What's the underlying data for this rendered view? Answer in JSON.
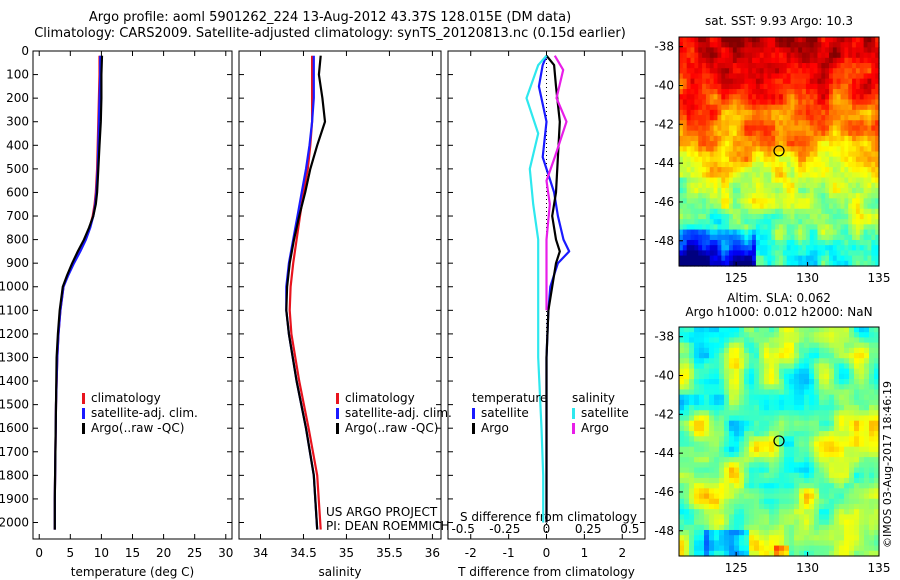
{
  "header": {
    "line1": "Argo profile: aoml 5901262_224 13-Aug-2012 43.37S 128.015E (DM data)",
    "line2": "Climatology: CARS2009. Satellite-adjusted climatology: synTS_20120813.nc (0.15d earlier)"
  },
  "colors": {
    "climatology": "#e8141e",
    "satellite": "#1a1aff",
    "argo": "#000000",
    "salinity_satellite": "#2ee8ee",
    "salinity_argo": "#e81ee8"
  },
  "chart_data": [
    {
      "id": "temperature",
      "type": "line",
      "xlabel": "temperature (deg C)",
      "ylabel": "",
      "xlim": [
        -1,
        31
      ],
      "xticks": [
        "0",
        "5",
        "10",
        "15",
        "20",
        "25",
        "30"
      ],
      "ylim": [
        2070,
        0
      ],
      "yticks": [
        "0",
        "100",
        "200",
        "300",
        "400",
        "500",
        "600",
        "700",
        "800",
        "900",
        "1000",
        "1100",
        "1200",
        "1300",
        "1400",
        "1500",
        "1600",
        "1700",
        "1800",
        "1900",
        "2000"
      ],
      "legend": [
        "climatology",
        "satellite-adj. clim.",
        "Argo(..raw -QC)"
      ],
      "series": [
        {
          "name": "climatology",
          "color": "#e8141e",
          "x": [
            9.7,
            9.7,
            9.6,
            9.5,
            9.4,
            9.3,
            9.1,
            8.9,
            8.6,
            8.1,
            7.4,
            6.5,
            5.5,
            4.6,
            3.9,
            3.4,
            3.1,
            2.9,
            2.7,
            2.6,
            2.5,
            2.5
          ],
          "y": [
            20,
            100,
            200,
            300,
            400,
            500,
            600,
            650,
            700,
            750,
            800,
            850,
            900,
            950,
            1000,
            1100,
            1200,
            1300,
            1500,
            1700,
            1900,
            2030
          ]
        },
        {
          "name": "satellite-adj. clim.",
          "color": "#1a1aff",
          "x": [
            9.8,
            9.8,
            9.7,
            9.6,
            9.5,
            9.4,
            9.2,
            9.0,
            8.7,
            8.2,
            7.5,
            6.6,
            5.6,
            4.7,
            3.9,
            3.4,
            3.1,
            2.9,
            2.7,
            2.6,
            2.5,
            2.5
          ],
          "y": [
            20,
            100,
            200,
            300,
            400,
            500,
            600,
            650,
            700,
            750,
            800,
            850,
            900,
            950,
            1000,
            1100,
            1200,
            1300,
            1500,
            1700,
            1900,
            2030
          ]
        },
        {
          "name": "Argo(..raw -QC)",
          "color": "#000000",
          "x": [
            10.1,
            10.0,
            10.0,
            9.9,
            9.7,
            9.5,
            9.3,
            9.1,
            8.7,
            8.0,
            7.2,
            6.2,
            5.3,
            4.5,
            3.8,
            3.3,
            3.0,
            2.8,
            2.7,
            2.6,
            2.5,
            2.5
          ],
          "y": [
            20,
            100,
            200,
            300,
            400,
            500,
            600,
            650,
            700,
            750,
            800,
            850,
            900,
            950,
            1000,
            1100,
            1200,
            1300,
            1500,
            1700,
            1900,
            2030
          ]
        }
      ]
    },
    {
      "id": "salinity",
      "type": "line",
      "xlabel": "salinity",
      "ylabel": "",
      "xlim": [
        33.75,
        36.1
      ],
      "xticks": [
        "34",
        "34.5",
        "35",
        "35.5",
        "36"
      ],
      "ylim": [
        2070,
        0
      ],
      "legend": [
        "climatology",
        "satellite-adj. clim.",
        "Argo(..raw -QC)"
      ],
      "series": [
        {
          "name": "climatology",
          "color": "#e8141e",
          "x": [
            34.6,
            34.6,
            34.6,
            34.6,
            34.58,
            34.55,
            34.5,
            34.46,
            34.42,
            34.38,
            34.35,
            34.34,
            34.36,
            34.45,
            34.56,
            34.66,
            34.7
          ],
          "y": [
            20,
            100,
            200,
            300,
            400,
            500,
            600,
            700,
            800,
            900,
            1000,
            1100,
            1200,
            1400,
            1600,
            1800,
            2030
          ]
        },
        {
          "name": "satellite-adj. clim.",
          "color": "#1a1aff",
          "x": [
            34.62,
            34.62,
            34.62,
            34.6,
            34.57,
            34.53,
            34.48,
            34.43,
            34.38,
            34.33,
            34.3,
            34.3,
            34.33,
            34.42,
            34.53,
            34.62,
            34.66
          ],
          "y": [
            20,
            100,
            200,
            300,
            400,
            500,
            600,
            700,
            800,
            900,
            1000,
            1100,
            1200,
            1400,
            1600,
            1800,
            2030
          ]
        },
        {
          "name": "Argo(..raw -QC)",
          "color": "#000000",
          "x": [
            34.7,
            34.68,
            34.72,
            34.75,
            34.66,
            34.58,
            34.52,
            34.45,
            34.39,
            34.34,
            34.31,
            34.3,
            34.33,
            34.42,
            34.53,
            34.62,
            34.66
          ],
          "y": [
            20,
            100,
            200,
            300,
            400,
            500,
            600,
            700,
            800,
            900,
            1000,
            1100,
            1200,
            1400,
            1600,
            1800,
            2030
          ]
        }
      ]
    },
    {
      "id": "difference",
      "type": "line",
      "xlabel": "T difference from climatology",
      "top_label": "S difference from climatology",
      "xlim": [
        -2.6,
        2.6
      ],
      "xticks": [
        "-2",
        "-1",
        "0",
        "1",
        "2"
      ],
      "top_ticks": [
        "-0.5",
        "-0.25",
        "0",
        "0.25",
        "0.5"
      ],
      "ylim": [
        2070,
        0
      ],
      "legend_headers": [
        "temperature",
        "salinity"
      ],
      "legend": [
        "satellite",
        "Argo",
        "satellite",
        "Argo"
      ],
      "series": [
        {
          "name": "satellite",
          "group": "temperature",
          "color": "#1a1aff",
          "x": [
            0,
            -0.1,
            -0.2,
            0,
            -0.1,
            0.2,
            0.3,
            0.45,
            0.6,
            0.3,
            0.1,
            0.05,
            0.0,
            0.0,
            0.0
          ],
          "y": [
            20,
            60,
            150,
            300,
            450,
            600,
            700,
            800,
            850,
            900,
            1000,
            1100,
            1300,
            1600,
            2000
          ]
        },
        {
          "name": "Argo",
          "group": "temperature",
          "color": "#000000",
          "x": [
            0,
            0.2,
            0.25,
            0.35,
            0.3,
            0.25,
            0.15,
            0.25,
            0.35,
            0.25,
            0.15,
            0.05,
            0.0,
            0.0,
            0.0
          ],
          "y": [
            20,
            60,
            150,
            300,
            450,
            600,
            700,
            800,
            850,
            900,
            1000,
            1100,
            1300,
            1600,
            2000
          ]
        },
        {
          "name": "satellite",
          "group": "salinity",
          "color": "#2ee8ee",
          "x": [
            0,
            -0.05,
            -0.12,
            -0.05,
            -0.1,
            -0.08,
            -0.05,
            -0.05,
            -0.05,
            -0.05,
            -0.03,
            -0.02,
            -0.02
          ],
          "y": [
            20,
            60,
            200,
            350,
            500,
            650,
            800,
            950,
            1100,
            1300,
            1600,
            1800,
            2000
          ]
        },
        {
          "name": "Argo",
          "group": "salinity",
          "color": "#e81ee8",
          "x": [
            0.05,
            0.1,
            0.06,
            0.12,
            0.05,
            0.0,
            0.02,
            0.0,
            0.0
          ],
          "y": [
            20,
            80,
            200,
            300,
            450,
            550,
            650,
            800,
            1100
          ]
        }
      ]
    },
    {
      "id": "sst_map",
      "type": "heatmap",
      "title": "sat. SST: 9.93 Argo: 10.3",
      "xlim": [
        121,
        135
      ],
      "ylim": [
        -49.3,
        -37.5
      ],
      "xticks": [
        "125",
        "130",
        "135"
      ],
      "yticks": [
        "-38",
        "-40",
        "-42",
        "-44",
        "-46",
        "-48"
      ],
      "marker": {
        "lon": 128,
        "lat": -43.37
      }
    },
    {
      "id": "sla_map",
      "type": "heatmap",
      "title_line1": "Altim. SLA: 0.062",
      "title_line2": "Argo h1000: 0.012 h2000: NaN",
      "xlim": [
        121,
        135
      ],
      "ylim": [
        -49.3,
        -37.5
      ],
      "xticks": [
        "125",
        "130",
        "135"
      ],
      "yticks": [
        "-38",
        "-40",
        "-42",
        "-44",
        "-46",
        "-48"
      ],
      "marker": {
        "lon": 128,
        "lat": -43.37
      }
    }
  ],
  "credits": {
    "line1": "US ARGO PROJECT",
    "line2": "PI: DEAN ROEMMICH"
  },
  "copyright": "©IMOS 03-Aug-2017 18:46:19"
}
